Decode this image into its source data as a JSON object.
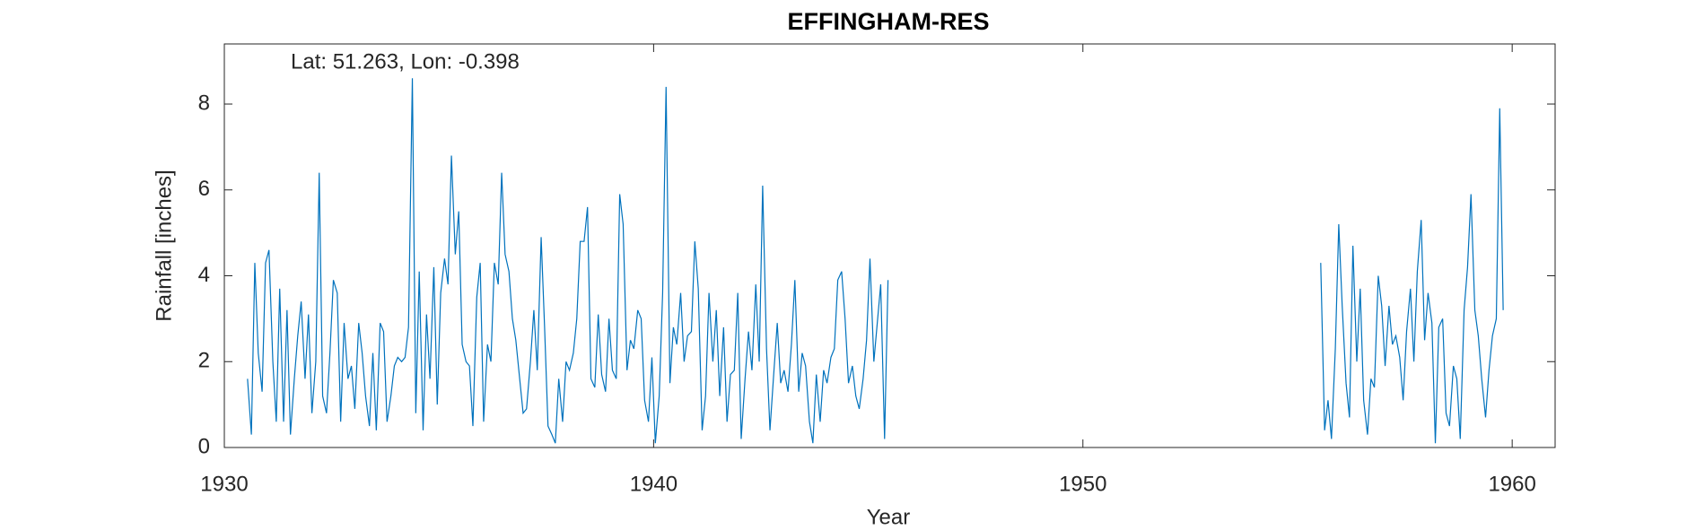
{
  "chart_data": {
    "type": "line",
    "title": "EFFINGHAM-RES",
    "annotation": "Lat: 51.263, Lon: -0.398",
    "x_label": "Year",
    "y_label": "Rainfall [inches]",
    "color": "#0072bd",
    "xlim": [
      1930,
      1961
    ],
    "xticks": [
      1930,
      1940,
      1950,
      1960
    ],
    "ylim": [
      0,
      9.4
    ],
    "yticks": [
      0,
      2,
      4,
      6,
      8
    ],
    "x": [
      1930.54,
      1930.63,
      1930.71,
      1930.79,
      1930.88,
      1930.96,
      1931.04,
      1931.13,
      1931.21,
      1931.29,
      1931.38,
      1931.46,
      1931.54,
      1931.63,
      1931.71,
      1931.79,
      1931.88,
      1931.96,
      1932.04,
      1932.13,
      1932.21,
      1932.29,
      1932.38,
      1932.46,
      1932.54,
      1932.63,
      1932.71,
      1932.79,
      1932.88,
      1932.96,
      1933.04,
      1933.13,
      1933.21,
      1933.29,
      1933.38,
      1933.46,
      1933.54,
      1933.63,
      1933.71,
      1933.79,
      1933.88,
      1933.96,
      1934.04,
      1934.13,
      1934.21,
      1934.29,
      1934.38,
      1934.46,
      1934.54,
      1934.63,
      1934.71,
      1934.79,
      1934.88,
      1934.96,
      1935.04,
      1935.13,
      1935.21,
      1935.29,
      1935.38,
      1935.46,
      1935.54,
      1935.63,
      1935.71,
      1935.79,
      1935.88,
      1935.96,
      1936.04,
      1936.13,
      1936.21,
      1936.29,
      1936.38,
      1936.46,
      1936.54,
      1936.63,
      1936.71,
      1936.79,
      1936.88,
      1936.96,
      1937.04,
      1937.13,
      1937.21,
      1937.29,
      1937.38,
      1937.46,
      1937.54,
      1937.63,
      1937.71,
      1937.79,
      1937.88,
      1937.96,
      1938.04,
      1938.13,
      1938.21,
      1938.29,
      1938.38,
      1938.46,
      1938.54,
      1938.63,
      1938.71,
      1938.79,
      1938.88,
      1938.96,
      1939.04,
      1939.13,
      1939.21,
      1939.29,
      1939.38,
      1939.46,
      1939.54,
      1939.63,
      1939.71,
      1939.79,
      1939.88,
      1939.96,
      1940.04,
      1940.13,
      1940.21,
      1940.29,
      1940.38,
      1940.46,
      1940.54,
      1940.63,
      1940.71,
      1940.79,
      1940.88,
      1940.96,
      1941.04,
      1941.13,
      1941.21,
      1941.29,
      1941.38,
      1941.46,
      1941.54,
      1941.63,
      1941.71,
      1941.79,
      1941.88,
      1941.96,
      1942.04,
      1942.13,
      1942.21,
      1942.29,
      1942.38,
      1942.46,
      1942.54,
      1942.63,
      1942.71,
      1942.79,
      1942.88,
      1942.96,
      1943.04,
      1943.13,
      1943.21,
      1943.29,
      1943.38,
      1943.46,
      1943.54,
      1943.63,
      1943.71,
      1943.79,
      1943.88,
      1943.96,
      1944.04,
      1944.13,
      1944.21,
      1944.29,
      1944.38,
      1944.46,
      1944.54,
      1944.63,
      1944.71,
      1944.79,
      1944.88,
      1944.96,
      1945.04,
      1945.13,
      1945.21,
      1945.29,
      1945.38,
      1945.46,
      1950.5,
      1955.54,
      1955.63,
      1955.71,
      1955.79,
      1955.88,
      1955.96,
      1956.04,
      1956.13,
      1956.21,
      1956.29,
      1956.38,
      1956.46,
      1956.54,
      1956.63,
      1956.71,
      1956.79,
      1956.88,
      1956.96,
      1957.04,
      1957.13,
      1957.21,
      1957.29,
      1957.38,
      1957.46,
      1957.54,
      1957.63,
      1957.71,
      1957.79,
      1957.88,
      1957.96,
      1958.04,
      1958.13,
      1958.21,
      1958.29,
      1958.38,
      1958.46,
      1958.54,
      1958.63,
      1958.71,
      1958.79,
      1958.88,
      1958.96,
      1959.04,
      1959.13,
      1959.21,
      1959.29,
      1959.38,
      1959.46,
      1959.54,
      1959.63,
      1959.71,
      1959.79
    ],
    "values": [
      1.6,
      0.3,
      4.3,
      2.2,
      1.3,
      4.3,
      4.6,
      2.0,
      0.6,
      3.7,
      0.6,
      3.2,
      0.3,
      1.6,
      2.6,
      3.4,
      1.6,
      3.1,
      0.8,
      2.0,
      6.4,
      1.2,
      0.8,
      2.2,
      3.9,
      3.6,
      0.6,
      2.9,
      1.6,
      1.9,
      0.9,
      2.9,
      2.2,
      1.2,
      0.5,
      2.2,
      0.4,
      2.9,
      2.7,
      0.6,
      1.2,
      1.9,
      2.1,
      2.0,
      2.1,
      2.8,
      8.6,
      0.8,
      4.1,
      0.4,
      3.1,
      1.6,
      4.2,
      1.0,
      3.6,
      4.4,
      3.8,
      6.8,
      4.5,
      5.5,
      2.4,
      2.0,
      1.9,
      0.5,
      3.5,
      4.3,
      0.6,
      2.4,
      2.0,
      4.3,
      3.8,
      6.4,
      4.5,
      4.1,
      3.0,
      2.5,
      1.6,
      0.8,
      0.9,
      2.0,
      3.2,
      1.8,
      4.9,
      2.8,
      0.5,
      0.3,
      0.1,
      1.6,
      0.6,
      2.0,
      1.8,
      2.2,
      3.0,
      4.8,
      4.8,
      5.6,
      1.6,
      1.4,
      3.1,
      1.7,
      1.3,
      3.0,
      1.8,
      1.6,
      5.9,
      5.2,
      1.8,
      2.5,
      2.3,
      3.2,
      3.0,
      1.1,
      0.6,
      2.1,
      0.1,
      1.2,
      3.6,
      8.4,
      1.5,
      2.8,
      2.4,
      3.6,
      2.0,
      2.6,
      2.7,
      4.8,
      3.7,
      0.4,
      1.2,
      3.6,
      2.0,
      3.2,
      1.2,
      2.8,
      0.6,
      1.7,
      1.8,
      3.6,
      0.2,
      1.6,
      2.7,
      1.8,
      3.8,
      2.0,
      6.1,
      2.3,
      0.4,
      1.6,
      2.9,
      1.5,
      1.8,
      1.3,
      2.4,
      3.9,
      1.3,
      2.2,
      1.9,
      0.6,
      0.1,
      1.7,
      0.6,
      1.8,
      1.5,
      2.1,
      2.3,
      3.9,
      4.1,
      3.0,
      1.5,
      1.9,
      1.2,
      0.9,
      1.6,
      2.5,
      4.4,
      2.0,
      2.9,
      3.8,
      0.2,
      3.9,
      null,
      4.3,
      0.4,
      1.1,
      0.2,
      2.3,
      5.2,
      3.3,
      1.5,
      0.7,
      4.7,
      2.0,
      3.7,
      1.1,
      0.3,
      1.6,
      1.4,
      4.0,
      3.3,
      1.9,
      3.3,
      2.4,
      2.6,
      2.1,
      1.1,
      2.7,
      3.7,
      2.0,
      4.1,
      5.3,
      2.5,
      3.6,
      2.9,
      0.1,
      2.8,
      3.0,
      0.8,
      0.5,
      1.9,
      1.6,
      0.2,
      3.2,
      4.2,
      5.9,
      3.2,
      2.6,
      1.6,
      0.7,
      1.8,
      2.6,
      3.0,
      7.9,
      3.2
    ]
  }
}
